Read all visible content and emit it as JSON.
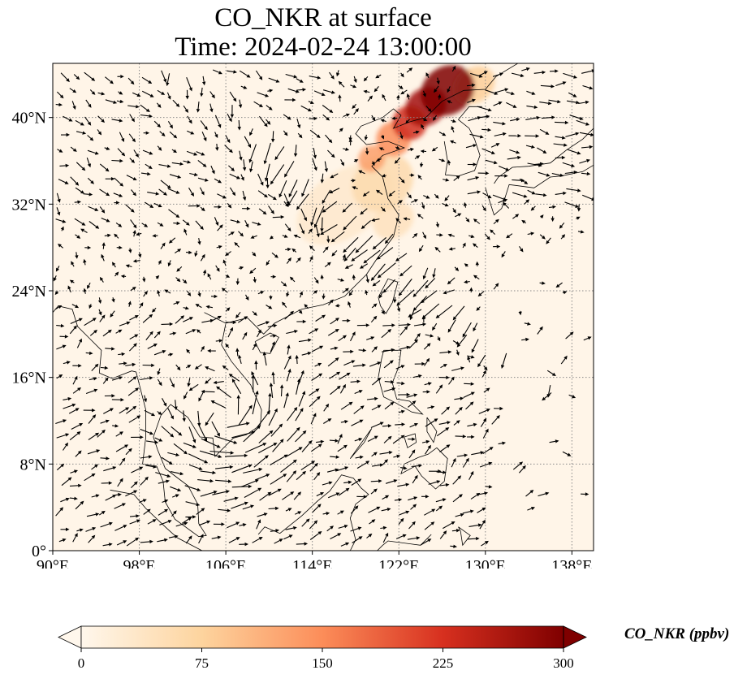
{
  "title": {
    "line1": "CO_NKR at surface",
    "line2": "Time: 2024-02-24 13:00:00"
  },
  "chart_data": {
    "type": "heatmap",
    "title": "CO_NKR at surface",
    "subtitle": "Time: 2024-02-24 13:00:00",
    "variable": "CO_NKR",
    "level": "surface",
    "time": "2024-02-24 13:00:00",
    "overlay": "surface wind vectors (quiver)",
    "xlim": [
      90,
      140
    ],
    "ylim": [
      0,
      45
    ],
    "x_ticks": [
      {
        "value": 90,
        "label": "90°E"
      },
      {
        "value": 98,
        "label": "98°E"
      },
      {
        "value": 106,
        "label": "106°E"
      },
      {
        "value": 114,
        "label": "114°E"
      },
      {
        "value": 122,
        "label": "122°E"
      },
      {
        "value": 130,
        "label": "130°E"
      },
      {
        "value": 138,
        "label": "138°E"
      }
    ],
    "y_ticks": [
      {
        "value": 0,
        "label": "0°"
      },
      {
        "value": 8,
        "label": "8°N"
      },
      {
        "value": 16,
        "label": "16°N"
      },
      {
        "value": 24,
        "label": "24°N"
      },
      {
        "value": 32,
        "label": "32°N"
      },
      {
        "value": 40,
        "label": "40°N"
      }
    ],
    "grid": true,
    "grid_style": "dotted",
    "colormap": "OrRd",
    "colors": [
      "#fff7ec",
      "#fdd49e",
      "#fc8d59",
      "#d7301f",
      "#7f0000"
    ],
    "colorbar": {
      "label": "CO_NKR (ppbv)",
      "min": 0,
      "max": 300,
      "ticks": [
        0,
        75,
        150,
        225,
        300
      ],
      "extend": "both"
    },
    "plumes": [
      {
        "lon": 126.5,
        "lat": 42.5,
        "value": 300,
        "rlon": 2.6,
        "rlat": 2.2
      },
      {
        "lon": 124.5,
        "lat": 41.0,
        "value": 270,
        "rlon": 2.0,
        "rlat": 1.7
      },
      {
        "lon": 123.0,
        "lat": 39.5,
        "value": 230,
        "rlon": 1.6,
        "rlat": 1.6
      },
      {
        "lon": 121.5,
        "lat": 38.0,
        "value": 150,
        "rlon": 1.6,
        "rlat": 1.6
      },
      {
        "lon": 119.5,
        "lat": 36.2,
        "value": 130,
        "rlon": 1.3,
        "rlat": 1.2
      },
      {
        "lon": 120.5,
        "lat": 34.0,
        "value": 60,
        "rlon": 3.0,
        "rlat": 2.5
      },
      {
        "lon": 117.0,
        "lat": 32.0,
        "value": 30,
        "rlon": 5.0,
        "rlat": 3.0
      },
      {
        "lon": 121.5,
        "lat": 30.5,
        "value": 45,
        "rlon": 2.0,
        "rlat": 1.6
      },
      {
        "lon": 129.0,
        "lat": 43.0,
        "value": 80,
        "rlon": 2.0,
        "rlat": 1.6
      }
    ]
  }
}
